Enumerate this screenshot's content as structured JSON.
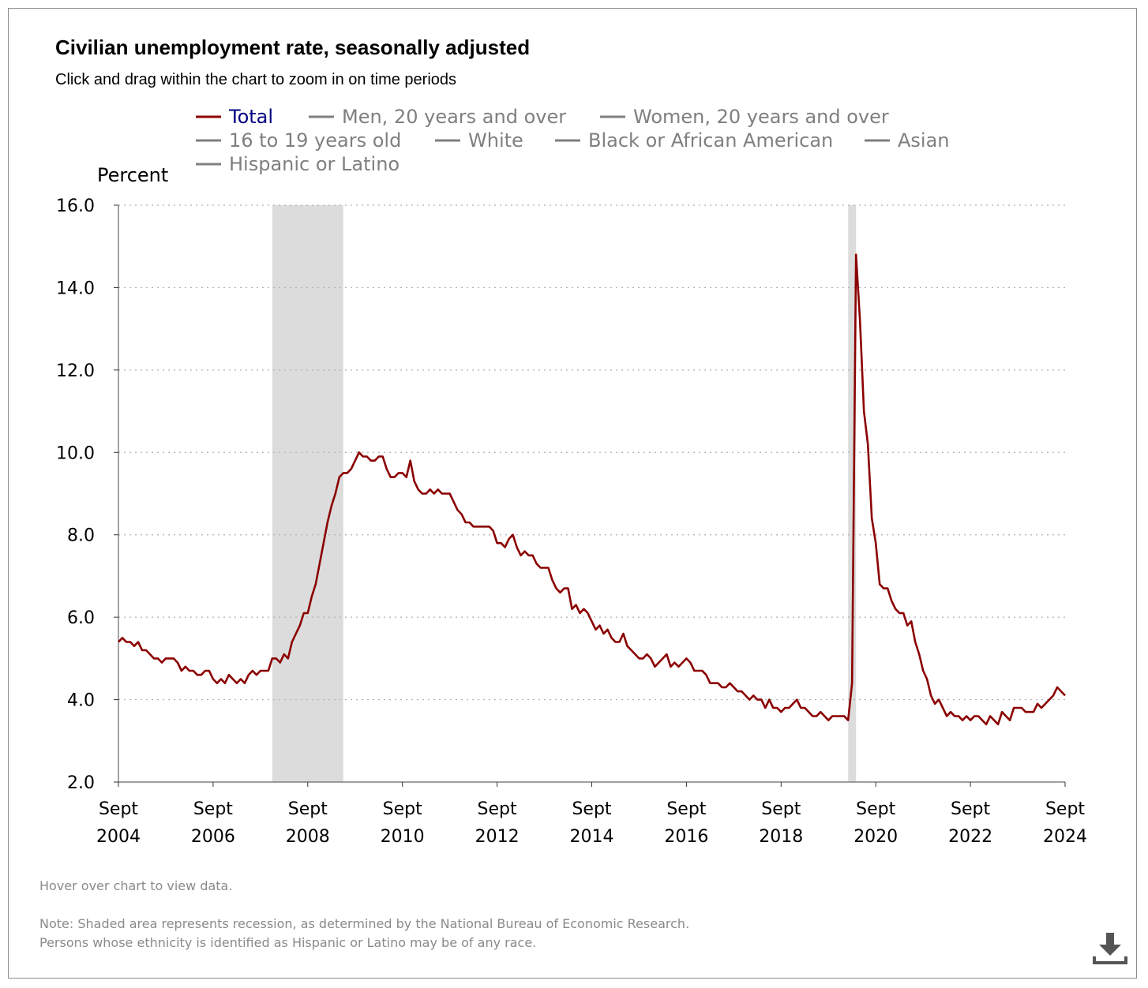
{
  "title": "Civilian unemployment rate, seasonally adjusted",
  "subtitle": "Click and drag within the chart to zoom in on time periods",
  "hover_note": "Hover over chart to view data.",
  "note_line1": "Note: Shaded area represents recession, as determined by the National Bureau of Economic Research.",
  "note_line2": "Persons whose ethnicity is identified as Hispanic or Latino may be of any race.",
  "download_icon": "download-icon",
  "colors": {
    "total": "#8b0000",
    "inactive": "#7f7f7f",
    "active_legend_text": "#000080",
    "recession": "#dcdcdc",
    "grid": "#b0b0b0"
  },
  "chart_data": {
    "type": "line",
    "ylabel": "Percent",
    "ylim": [
      2.0,
      16.0
    ],
    "y_ticks": [
      "2.0",
      "4.0",
      "6.0",
      "8.0",
      "10.0",
      "12.0",
      "14.0",
      "16.0"
    ],
    "x_range": [
      "2004-09",
      "2024-09"
    ],
    "x_ticks": [
      {
        "line1": "Sept",
        "line2": "2004"
      },
      {
        "line1": "Sept",
        "line2": "2006"
      },
      {
        "line1": "Sept",
        "line2": "2008"
      },
      {
        "line1": "Sept",
        "line2": "2010"
      },
      {
        "line1": "Sept",
        "line2": "2012"
      },
      {
        "line1": "Sept",
        "line2": "2014"
      },
      {
        "line1": "Sept",
        "line2": "2016"
      },
      {
        "line1": "Sept",
        "line2": "2018"
      },
      {
        "line1": "Sept",
        "line2": "2020"
      },
      {
        "line1": "Sept",
        "line2": "2022"
      },
      {
        "line1": "Sept",
        "line2": "2024"
      }
    ],
    "grid": "horizontal dotted",
    "legend_placement": "top",
    "legend": [
      {
        "name": "Total",
        "active": true
      },
      {
        "name": "Men, 20 years and over",
        "active": false
      },
      {
        "name": "Women, 20 years and over",
        "active": false
      },
      {
        "name": "16 to 19 years old",
        "active": false
      },
      {
        "name": "White",
        "active": false
      },
      {
        "name": "Black or African American",
        "active": false
      },
      {
        "name": "Asian",
        "active": false
      },
      {
        "name": "Hispanic or Latino",
        "active": false
      }
    ],
    "recessions": [
      [
        "2007-12",
        "2009-06"
      ],
      [
        "2020-02",
        "2020-04"
      ]
    ],
    "series": [
      {
        "name": "Total",
        "start": "2004-09",
        "frequency": "monthly",
        "values": [
          5.4,
          5.5,
          5.4,
          5.4,
          5.3,
          5.4,
          5.2,
          5.2,
          5.1,
          5.0,
          5.0,
          4.9,
          5.0,
          5.0,
          5.0,
          4.9,
          4.7,
          4.8,
          4.7,
          4.7,
          4.6,
          4.6,
          4.7,
          4.7,
          4.5,
          4.4,
          4.5,
          4.4,
          4.6,
          4.5,
          4.4,
          4.5,
          4.4,
          4.6,
          4.7,
          4.6,
          4.7,
          4.7,
          4.7,
          5.0,
          5.0,
          4.9,
          5.1,
          5.0,
          5.4,
          5.6,
          5.8,
          6.1,
          6.1,
          6.5,
          6.8,
          7.3,
          7.8,
          8.3,
          8.7,
          9.0,
          9.4,
          9.5,
          9.5,
          9.6,
          9.8,
          10.0,
          9.9,
          9.9,
          9.8,
          9.8,
          9.9,
          9.9,
          9.6,
          9.4,
          9.4,
          9.5,
          9.5,
          9.4,
          9.8,
          9.3,
          9.1,
          9.0,
          9.0,
          9.1,
          9.0,
          9.1,
          9.0,
          9.0,
          9.0,
          8.8,
          8.6,
          8.5,
          8.3,
          8.3,
          8.2,
          8.2,
          8.2,
          8.2,
          8.2,
          8.1,
          7.8,
          7.8,
          7.7,
          7.9,
          8.0,
          7.7,
          7.5,
          7.6,
          7.5,
          7.5,
          7.3,
          7.2,
          7.2,
          7.2,
          6.9,
          6.7,
          6.6,
          6.7,
          6.7,
          6.2,
          6.3,
          6.1,
          6.2,
          6.1,
          5.9,
          5.7,
          5.8,
          5.6,
          5.7,
          5.5,
          5.4,
          5.4,
          5.6,
          5.3,
          5.2,
          5.1,
          5.0,
          5.0,
          5.1,
          5.0,
          4.8,
          4.9,
          5.0,
          5.1,
          4.8,
          4.9,
          4.8,
          4.9,
          5.0,
          4.9,
          4.7,
          4.7,
          4.7,
          4.6,
          4.4,
          4.4,
          4.4,
          4.3,
          4.3,
          4.4,
          4.3,
          4.2,
          4.2,
          4.1,
          4.0,
          4.1,
          4.0,
          4.0,
          3.8,
          4.0,
          3.8,
          3.8,
          3.7,
          3.8,
          3.8,
          3.9,
          4.0,
          3.8,
          3.8,
          3.7,
          3.6,
          3.6,
          3.7,
          3.6,
          3.5,
          3.6,
          3.6,
          3.6,
          3.6,
          3.5,
          4.4,
          14.8,
          13.2,
          11.0,
          10.2,
          8.4,
          7.8,
          6.8,
          6.7,
          6.7,
          6.4,
          6.2,
          6.1,
          6.1,
          5.8,
          5.9,
          5.4,
          5.1,
          4.7,
          4.5,
          4.1,
          3.9,
          4.0,
          3.8,
          3.6,
          3.7,
          3.6,
          3.6,
          3.5,
          3.6,
          3.5,
          3.6,
          3.6,
          3.5,
          3.4,
          3.6,
          3.5,
          3.4,
          3.7,
          3.6,
          3.5,
          3.8,
          3.8,
          3.8,
          3.7,
          3.7,
          3.7,
          3.9,
          3.8,
          3.9,
          4.0,
          4.1,
          4.3,
          4.2,
          4.1
        ]
      }
    ]
  }
}
